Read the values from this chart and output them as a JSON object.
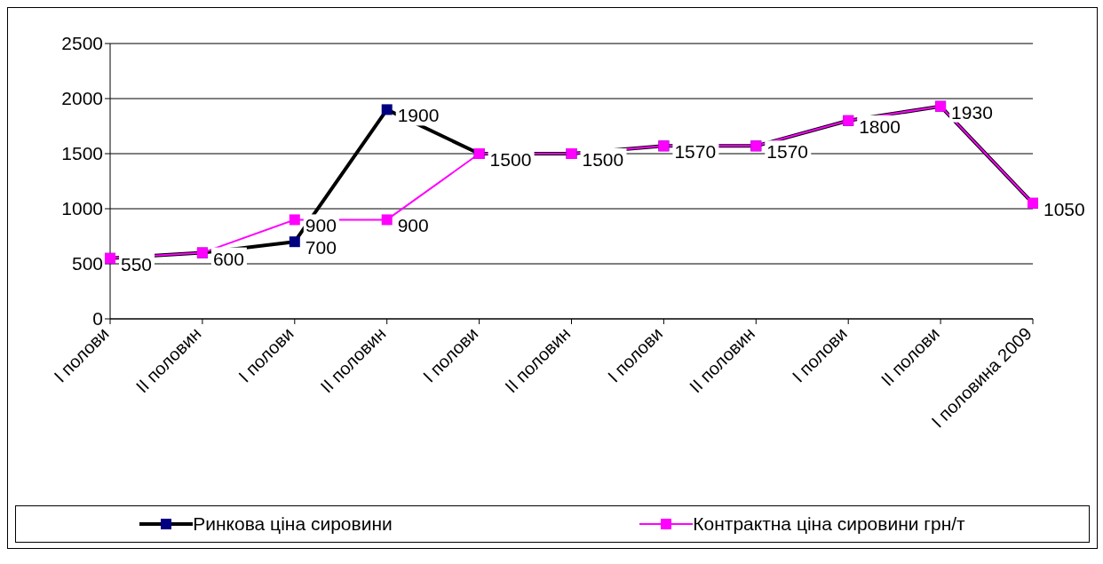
{
  "chart_data": {
    "type": "line",
    "categories": [
      "I полови",
      "II половин",
      "I полови",
      "II половин",
      "I полови",
      "II половин",
      "I полови",
      "II половин",
      "I полови",
      "II полови",
      "I половина 2009"
    ],
    "series": [
      {
        "name": "Ринкова ціна сировини",
        "color": "#000000",
        "values": [
          550,
          600,
          700,
          1900,
          1500,
          1500,
          1570,
          1570,
          1800,
          1930,
          1050
        ],
        "value_labels": [
          "550",
          "600",
          "700",
          "1900",
          "1500",
          "1500",
          "1570",
          "1570",
          "1800",
          "1930",
          "1050"
        ]
      },
      {
        "name": "Контрактна ціна сировини грн/т",
        "color": "#ff00ff",
        "values": [
          550,
          600,
          900,
          900,
          1500,
          1500,
          1570,
          1570,
          1800,
          1930,
          1050
        ],
        "value_labels": [
          null,
          null,
          "900",
          "900",
          null,
          null,
          null,
          null,
          null,
          null,
          null
        ]
      }
    ],
    "ylim": [
      0,
      2500
    ],
    "yticks": [
      0,
      500,
      1000,
      1500,
      2000,
      2500
    ],
    "grid": "y",
    "legend": "bottom",
    "marker": "square"
  }
}
